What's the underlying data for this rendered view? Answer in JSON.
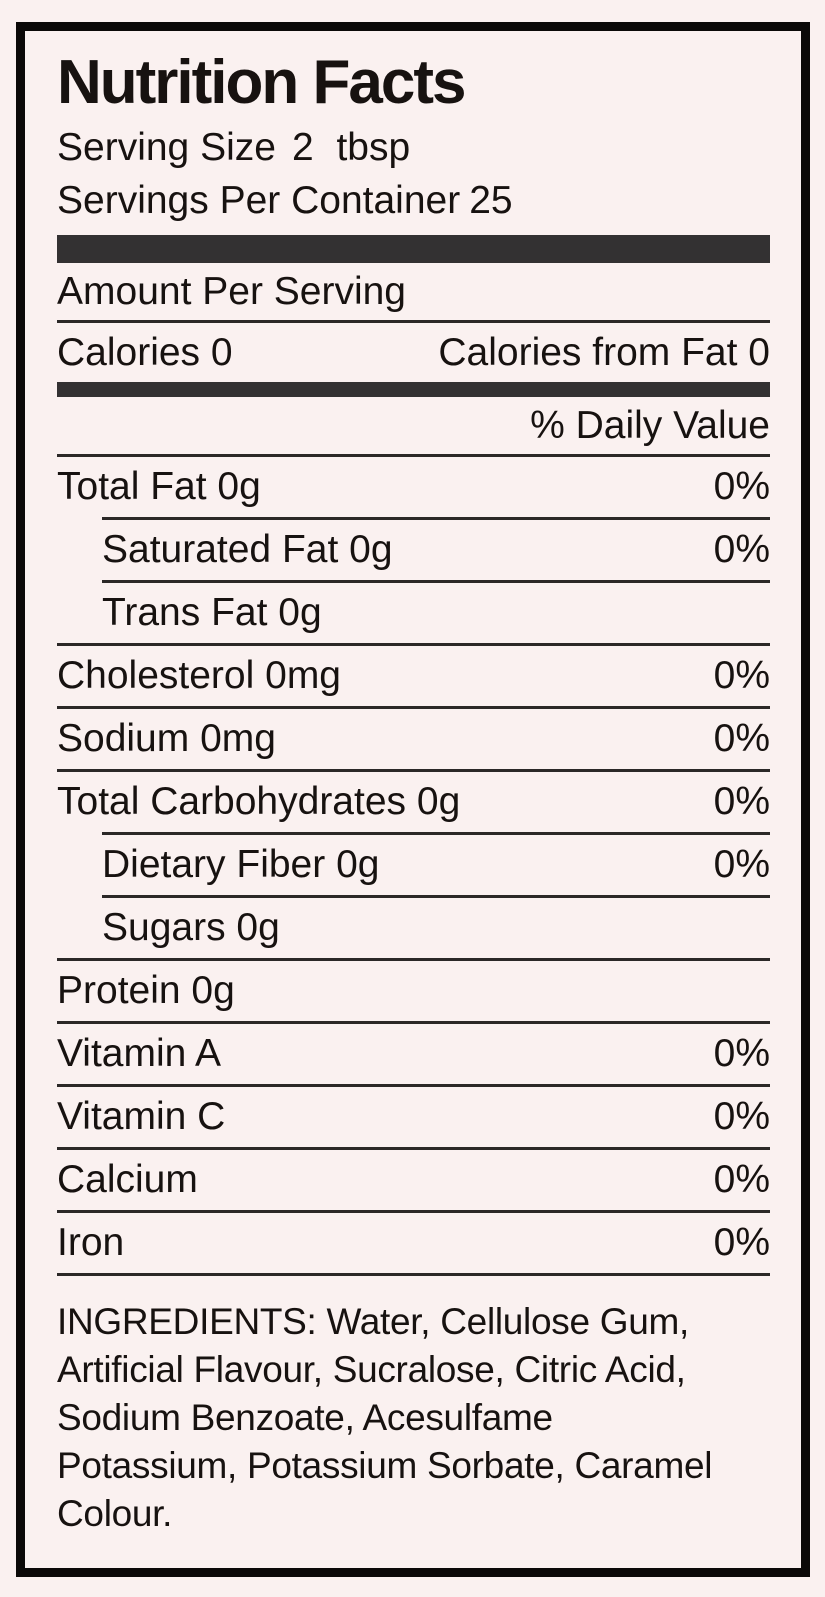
{
  "colors": {
    "background": "#faf1f0",
    "text": "#171210",
    "border": "#0b0908",
    "thick_bar": "#333132",
    "thin_line": "#2b2827"
  },
  "title": "Nutrition Facts",
  "serving": {
    "size_label": "Serving Size",
    "size_value": "2 tbsp",
    "per_container_label": "Servings Per Container",
    "per_container_value": "25"
  },
  "amount_per_serving": "Amount Per Serving",
  "calories": {
    "label": "Calories",
    "value": "0",
    "from_fat_label": "Calories from Fat",
    "from_fat_value": "0"
  },
  "daily_value_header": "% Daily Value",
  "nutrients": [
    {
      "name": "Total Fat",
      "amount": "0g",
      "daily_value": "0%"
    },
    {
      "name": "Saturated Fat",
      "amount": "0g",
      "daily_value": "0%"
    },
    {
      "name": "Trans Fat",
      "amount": "0g",
      "daily_value": ""
    },
    {
      "name": "Cholesterol",
      "amount": "0mg",
      "daily_value": "0%"
    },
    {
      "name": "Sodium",
      "amount": "0mg",
      "daily_value": "0%"
    },
    {
      "name": "Total Carbohydrates",
      "amount": "0g",
      "daily_value": "0%"
    },
    {
      "name": "Dietary Fiber",
      "amount": "0g",
      "daily_value": "0%"
    },
    {
      "name": "Sugars",
      "amount": "0g",
      "daily_value": ""
    },
    {
      "name": "Protein",
      "amount": "0g",
      "daily_value": ""
    },
    {
      "name": "Vitamin A",
      "amount": "",
      "daily_value": "0%"
    },
    {
      "name": "Vitamin C",
      "amount": "",
      "daily_value": "0%"
    },
    {
      "name": "Calcium",
      "amount": "",
      "daily_value": "0%"
    },
    {
      "name": "Iron",
      "amount": "",
      "daily_value": "0%"
    }
  ],
  "ingredients": {
    "lines": [
      "INGREDIENTS: Water, Cellulose Gum,",
      "Artificial Flavour, Sucralose, Citric Acid,",
      "Sodium Benzoate, Acesulfame",
      "Potassium, Potassium Sorbate, Caramel",
      "Colour."
    ]
  }
}
